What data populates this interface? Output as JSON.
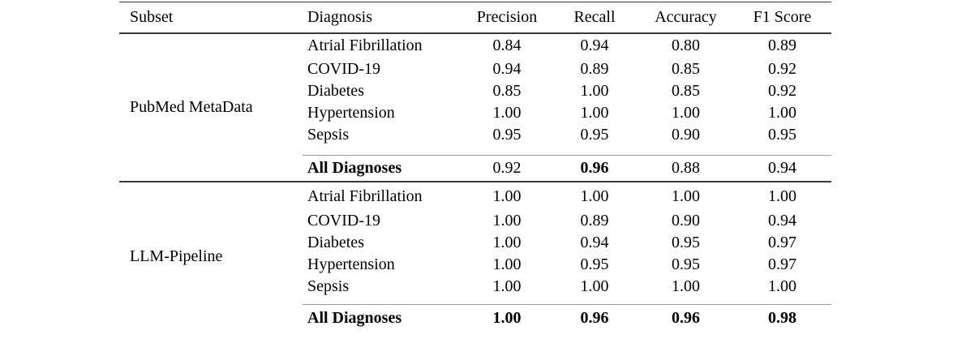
{
  "table": {
    "headers": {
      "subset": "Subset",
      "diagnosis": "Diagnosis",
      "precision": "Precision",
      "recall": "Recall",
      "accuracy": "Accuracy",
      "f1": "F1 Score"
    },
    "blocks": [
      {
        "subset": "PubMed MetaData",
        "rows": [
          {
            "diagnosis": "Atrial Fibrillation",
            "precision": "0.84",
            "recall": "0.94",
            "accuracy": "0.80",
            "f1": "0.89"
          },
          {
            "diagnosis": "COVID-19",
            "precision": "0.94",
            "recall": "0.89",
            "accuracy": "0.85",
            "f1": "0.92"
          },
          {
            "diagnosis": "Diabetes",
            "precision": "0.85",
            "recall": "1.00",
            "accuracy": "0.85",
            "f1": "0.92"
          },
          {
            "diagnosis": "Hypertension",
            "precision": "1.00",
            "recall": "1.00",
            "accuracy": "1.00",
            "f1": "1.00"
          },
          {
            "diagnosis": "Sepsis",
            "precision": "0.95",
            "recall": "0.95",
            "accuracy": "0.90",
            "f1": "0.95"
          }
        ],
        "summary": {
          "label": "All Diagnoses",
          "precision": "0.92",
          "recall": "0.96",
          "accuracy": "0.88",
          "f1": "0.94",
          "bold_metrics": [
            "recall"
          ]
        }
      },
      {
        "subset": "LLM-Pipeline",
        "rows": [
          {
            "diagnosis": "Atrial Fibrillation",
            "precision": "1.00",
            "recall": "1.00",
            "accuracy": "1.00",
            "f1": "1.00"
          },
          {
            "diagnosis": "COVID-19",
            "precision": "1.00",
            "recall": "0.89",
            "accuracy": "0.90",
            "f1": "0.94"
          },
          {
            "diagnosis": "Diabetes",
            "precision": "1.00",
            "recall": "0.94",
            "accuracy": "0.95",
            "f1": "0.97"
          },
          {
            "diagnosis": "Hypertension",
            "precision": "1.00",
            "recall": "0.95",
            "accuracy": "0.95",
            "f1": "0.97"
          },
          {
            "diagnosis": "Sepsis",
            "precision": "1.00",
            "recall": "1.00",
            "accuracy": "1.00",
            "f1": "1.00"
          }
        ],
        "summary": {
          "label": "All Diagnoses",
          "precision": "1.00",
          "recall": "0.96",
          "accuracy": "0.96",
          "f1": "0.98",
          "bold_metrics": [
            "precision",
            "recall",
            "accuracy",
            "f1"
          ]
        }
      }
    ]
  },
  "colors": {
    "rule_heavy": "#3a3a3a",
    "rule_light": "#999999",
    "text": "#000000",
    "background": "#ffffff"
  }
}
